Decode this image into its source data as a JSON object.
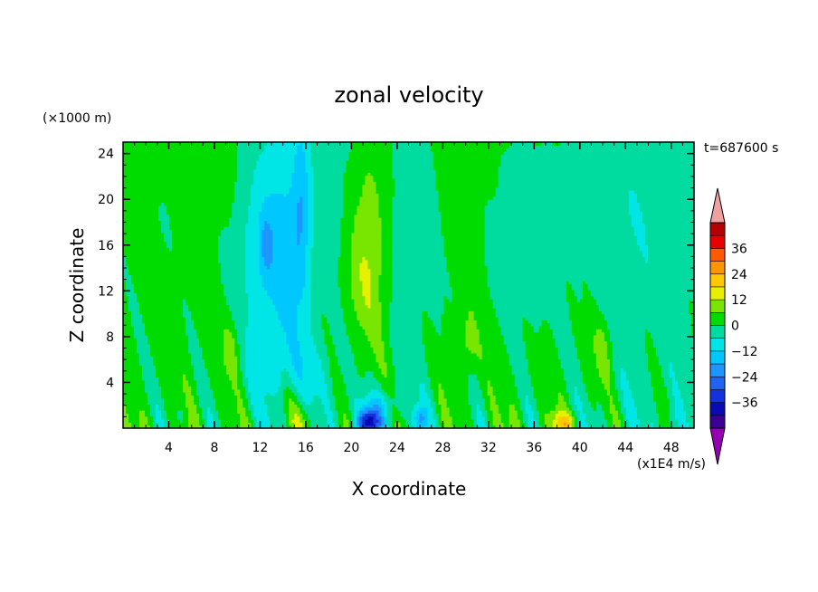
{
  "chart_data": {
    "type": "heatmap",
    "title": "zonal velocity",
    "xlabel": "X coordinate",
    "ylabel": "Z coordinate",
    "y_unit_label": "(×1000 m)",
    "x_unit_label": "(x1E4 m/s)",
    "time_label": "t=687600 s",
    "xlim": [
      0,
      50
    ],
    "ylim": [
      0,
      25
    ],
    "x_ticks": [
      4,
      8,
      12,
      16,
      20,
      24,
      28,
      32,
      36,
      40,
      44,
      48
    ],
    "x_tick_labels": [
      "4",
      "8",
      "12",
      "16",
      "20",
      "24",
      "28",
      "32",
      "36",
      "40",
      "44",
      "48"
    ],
    "y_ticks": [
      4,
      8,
      12,
      16,
      20,
      24
    ],
    "y_tick_labels": [
      "4",
      "8",
      "12",
      "16",
      "20",
      "24"
    ],
    "colorbar": {
      "levels": [
        -42,
        -36,
        -30,
        -24,
        -18,
        -12,
        -6,
        0,
        6,
        12,
        18,
        24,
        30,
        36,
        42
      ],
      "colors": [
        "#3b0096",
        "#0a0ab4",
        "#1432dc",
        "#1e64f0",
        "#1e96ff",
        "#00c8ff",
        "#00e6e6",
        "#00dca0",
        "#00dc00",
        "#78e600",
        "#e6f000",
        "#ffc800",
        "#ff9600",
        "#ff5a00",
        "#e60000",
        "#b40000"
      ],
      "under_color": "#9600b4",
      "over_color": "#f0a0a0",
      "tick_values": [
        -36,
        -24,
        -12,
        0,
        12,
        24,
        36
      ],
      "tick_labels": [
        "−36",
        "−24",
        "−12",
        "0",
        "12",
        "24",
        "36"
      ]
    },
    "field_features": [
      {
        "x": 21.5,
        "z": 0.6,
        "value": -30
      },
      {
        "x": 15.8,
        "z": 0.5,
        "value": 22
      },
      {
        "x": 15.5,
        "z": 19,
        "value": -20
      },
      {
        "x": 12.5,
        "z": 16,
        "value": -18
      },
      {
        "x": 21.5,
        "z": 15,
        "value": 12
      },
      {
        "x": 26,
        "z": 0.8,
        "value": -20
      },
      {
        "x": 38.5,
        "z": 0.5,
        "value": 18
      }
    ]
  }
}
